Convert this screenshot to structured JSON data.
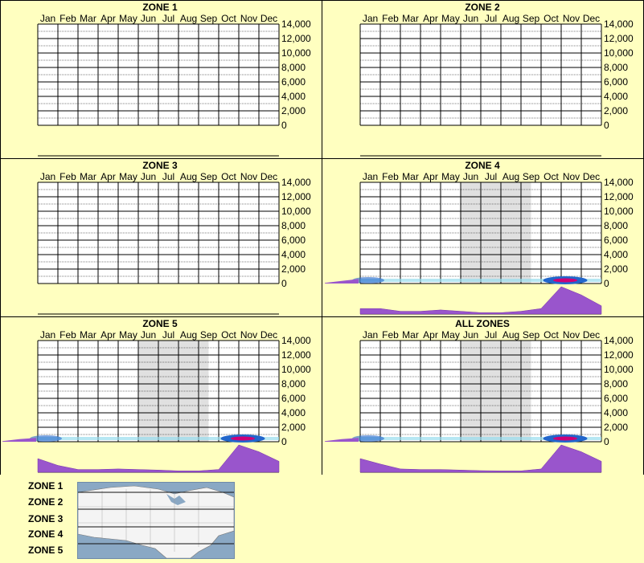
{
  "months": [
    "Jan",
    "Feb",
    "Mar",
    "Apr",
    "May",
    "Jun",
    "Jul",
    "Aug",
    "Sep",
    "Oct",
    "Nov",
    "Dec"
  ],
  "y_ticks": [
    "14,000",
    "12,000",
    "10,000",
    "8,000",
    "6,000",
    "4,000",
    "2,000",
    "0"
  ],
  "colors": {
    "background": "#ffffc0",
    "panel_border": "#000000",
    "season_band": "#e0e0e0",
    "profile": "#9955cc",
    "heat_low": "#99ddee",
    "heat_mid": "#2266cc",
    "heat_high": "#cc0077"
  },
  "chart_data": [
    {
      "type": "heatmap",
      "title": "ZONE 1",
      "ylim": [
        0,
        14000
      ],
      "season_band": null,
      "profile": [],
      "left_profile": []
    },
    {
      "type": "heatmap",
      "title": "ZONE 2",
      "ylim": [
        0,
        14000
      ],
      "season_band": null,
      "profile": [],
      "left_profile": []
    },
    {
      "type": "heatmap",
      "title": "ZONE 3",
      "ylim": [
        0,
        14000
      ],
      "season_band": null,
      "profile": [],
      "left_profile": []
    },
    {
      "type": "heatmap",
      "title": "ZONE 4",
      "ylim": [
        0,
        14000
      ],
      "season_band": [
        "Jun",
        "Sep"
      ],
      "profile": [
        0.2,
        0.2,
        0.1,
        0.1,
        0.15,
        0.1,
        0.05,
        0.05,
        0.1,
        0.2,
        1.0,
        0.7,
        0.3
      ],
      "left_profile": [
        0.1,
        0.4,
        0.7
      ]
    },
    {
      "type": "heatmap",
      "title": "ZONE 5",
      "ylim": [
        0,
        14000
      ],
      "season_band": [
        "Jun",
        "Sep"
      ],
      "profile": [
        0.5,
        0.25,
        0.1,
        0.1,
        0.12,
        0.1,
        0.08,
        0.05,
        0.05,
        0.1,
        1.0,
        0.75,
        0.4
      ],
      "left_profile": [
        0.1,
        0.4,
        0.6
      ]
    },
    {
      "type": "heatmap",
      "title": "ALL ZONES",
      "ylim": [
        0,
        14000
      ],
      "season_band": [
        "Jun",
        "Sep"
      ],
      "profile": [
        0.5,
        0.3,
        0.12,
        0.1,
        0.1,
        0.08,
        0.06,
        0.05,
        0.05,
        0.12,
        1.0,
        0.75,
        0.4
      ],
      "left_profile": [
        0.1,
        0.4,
        0.6
      ]
    }
  ],
  "legend": {
    "zones": [
      "ZONE 1",
      "ZONE 2",
      "ZONE 3",
      "ZONE 4",
      "ZONE 5"
    ]
  }
}
